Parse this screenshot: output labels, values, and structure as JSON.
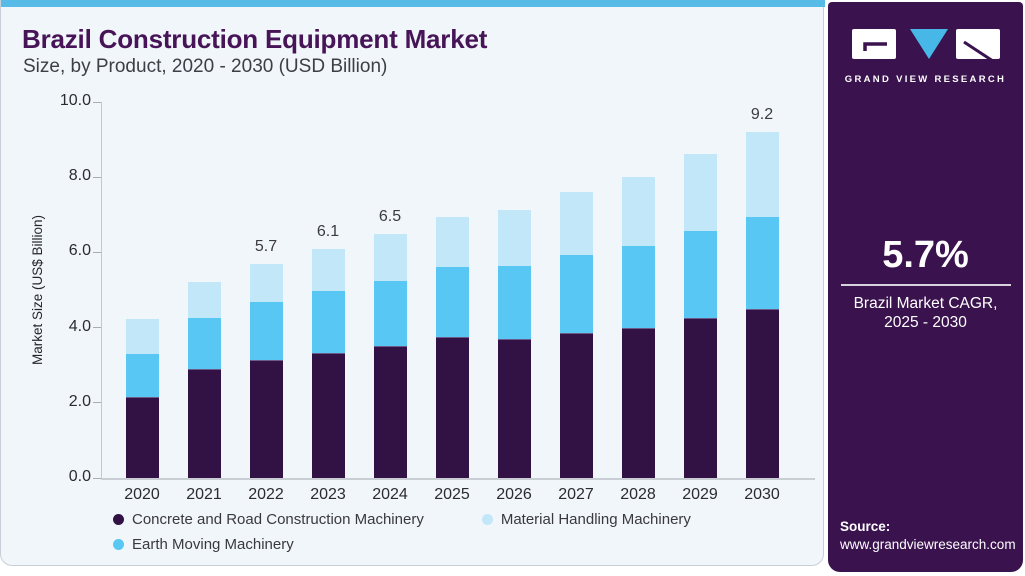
{
  "header": {
    "title": "Brazil Construction Equipment Market",
    "subtitle": "Size, by Product, 2020 - 2030 (USD Billion)"
  },
  "sidebar": {
    "brand": "GRAND VIEW RESEARCH",
    "cagr_value": "5.7%",
    "cagr_label_line1": "Brazil Market CAGR,",
    "cagr_label_line2": "2025 - 2030",
    "source_label": "Source:",
    "source_url": "www.grandviewresearch.com",
    "bg_color": "#3a124e",
    "accent_color": "#47b7e8"
  },
  "chart_data": {
    "type": "bar",
    "stacked": true,
    "title": "Brazil Construction Equipment Market Size, by Product, 2020 - 2030 (USD Billion)",
    "xlabel": "",
    "ylabel": "Market Size (US$ Billion)",
    "ylim": [
      0,
      10
    ],
    "yticks": [
      "0.0",
      "2.0",
      "4.0",
      "6.0",
      "8.0",
      "10.0"
    ],
    "grid": false,
    "legend_position": "bottom",
    "categories": [
      "2020",
      "2021",
      "2022",
      "2023",
      "2024",
      "2025",
      "2026",
      "2027",
      "2028",
      "2029",
      "2030"
    ],
    "series": [
      {
        "name": "Concrete and Road Construction Machinery",
        "color": "#321244",
        "values": [
          2.16,
          2.9,
          3.15,
          3.32,
          3.51,
          3.75,
          3.7,
          3.86,
          3.99,
          4.26,
          4.5
        ]
      },
      {
        "name": "Earth Moving Machinery",
        "color": "#58c7f3",
        "values": [
          1.15,
          1.36,
          1.52,
          1.65,
          1.72,
          1.85,
          1.95,
          2.07,
          2.18,
          2.32,
          2.44
        ]
      },
      {
        "name": "Material Handling Machinery",
        "color": "#c2e7f9",
        "values": [
          0.92,
          0.94,
          1.03,
          1.13,
          1.27,
          1.34,
          1.48,
          1.67,
          1.84,
          2.05,
          2.26
        ]
      }
    ],
    "totals": [
      4.23,
      5.2,
      5.7,
      6.1,
      6.5,
      6.94,
      7.13,
      7.6,
      8.01,
      8.63,
      9.2
    ],
    "total_labels": {
      "2022": "5.7",
      "2023": "6.1",
      "2024": "6.5",
      "2030": "9.2"
    },
    "legend_order": [
      "Concrete and Road Construction Machinery",
      "Material Handling Machinery",
      "Earth Moving Machinery"
    ]
  }
}
